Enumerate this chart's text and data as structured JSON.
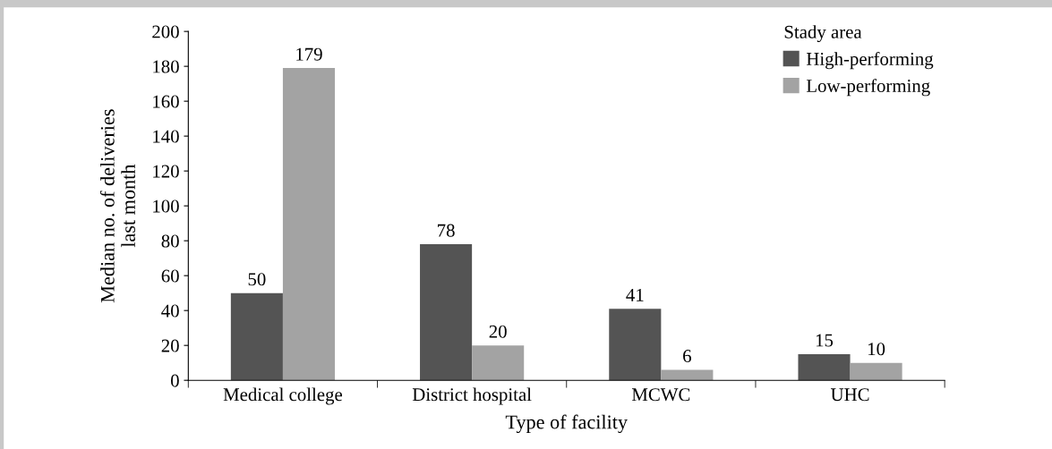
{
  "chart_data": {
    "type": "bar",
    "xlabel": "Type of facility",
    "ylabel": "Median no. of deliveries\nlast month",
    "legend_title": "Stady area",
    "categories": [
      "Medical college",
      "District hospital",
      "MCWC",
      "UHC"
    ],
    "series": [
      {
        "name": "High-performing",
        "color": "#545454",
        "values": [
          50,
          78,
          41,
          15
        ]
      },
      {
        "name": "Low-performing",
        "color": "#a3a3a3",
        "values": [
          179,
          20,
          6,
          10
        ]
      }
    ],
    "ylim": [
      0,
      200
    ],
    "yticks": [
      0,
      20,
      40,
      60,
      80,
      100,
      120,
      140,
      160,
      180,
      200
    ],
    "data_labels": true,
    "legend": "top right",
    "grid": false
  }
}
